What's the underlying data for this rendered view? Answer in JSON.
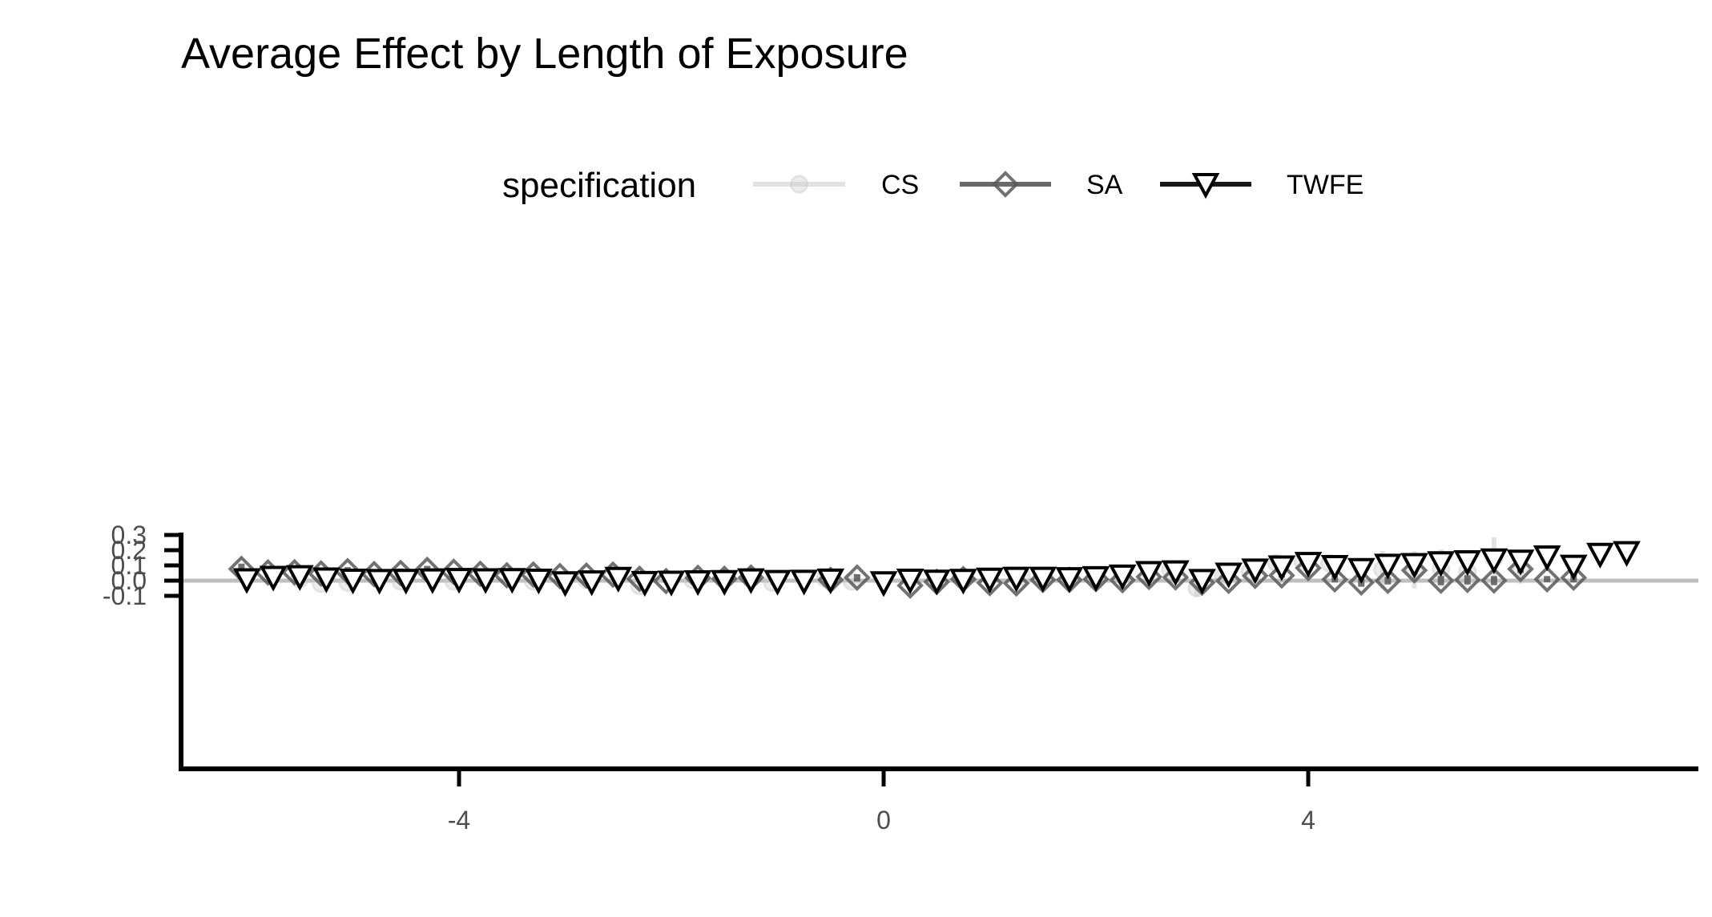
{
  "chart_data": {
    "type": "scatter",
    "title": "Average Effect by Length of Exposure",
    "xlabel": "",
    "ylabel": "",
    "xlim": [
      -6.6,
      7.7
    ],
    "ylim": [
      -0.125,
      0.305
    ],
    "x_ticks": [
      -4,
      0,
      4
    ],
    "x_tick_labels": [
      "-4",
      "0",
      "4"
    ],
    "y_ticks": [
      -0.1,
      0.0,
      0.1,
      0.2,
      0.3
    ],
    "y_tick_labels": [
      "-0.1",
      "0.0",
      "0.1",
      "0.2",
      "0.3"
    ],
    "reference_line_y": 0,
    "grid": false,
    "legend": {
      "title": "specification",
      "position": "top-center"
    },
    "colors": {
      "CS": "#cccccc",
      "SA": "#595959",
      "TWFE": "#000000",
      "reference": "#bfbfbf"
    },
    "series": [
      {
        "name": "CS",
        "marker": "circle",
        "points": [
          {
            "x": -5.5,
            "y": 0.01,
            "lo": -0.015,
            "hi": 0.035
          },
          {
            "x": -5.3,
            "y": -0.02,
            "lo": -0.035,
            "hi": -0.005
          },
          {
            "x": -5.05,
            "y": -0.012,
            "lo": -0.03,
            "hi": 0.005
          },
          {
            "x": -4.55,
            "y": -0.005,
            "lo": -0.02,
            "hi": 0.01
          },
          {
            "x": -4.05,
            "y": -0.005,
            "lo": -0.02,
            "hi": 0.01
          },
          {
            "x": -3.3,
            "y": -0.005,
            "lo": -0.02,
            "hi": 0.01
          },
          {
            "x": -2.8,
            "y": 0.007,
            "lo": -0.005,
            "hi": 0.02
          },
          {
            "x": -2.3,
            "y": -0.035,
            "lo": -0.045,
            "hi": -0.025
          },
          {
            "x": -1.8,
            "y": 0.005,
            "lo": -0.005,
            "hi": 0.015
          },
          {
            "x": -1.05,
            "y": -0.012,
            "lo": -0.03,
            "hi": 0.005
          },
          {
            "x": -0.55,
            "y": 0.015,
            "lo": 0.005,
            "hi": 0.025
          },
          {
            "x": -0.3,
            "y": -0.005,
            "lo": -0.02,
            "hi": 0.01
          },
          {
            "x": 0.25,
            "y": 0.01,
            "lo": -0.005,
            "hi": 0.025
          },
          {
            "x": 1.3,
            "y": 0.025,
            "lo": 0.005,
            "hi": 0.045
          },
          {
            "x": 2.5,
            "y": 0.065,
            "lo": 0.045,
            "hi": 0.085
          },
          {
            "x": 2.7,
            "y": 0.07,
            "lo": 0.05,
            "hi": 0.09
          },
          {
            "x": 2.95,
            "y": -0.048,
            "lo": -0.105,
            "hi": 0.01
          },
          {
            "x": 3.2,
            "y": 0.03,
            "lo": 0.01,
            "hi": 0.05
          },
          {
            "x": 3.45,
            "y": 0.06,
            "lo": 0.04,
            "hi": 0.08
          },
          {
            "x": 3.7,
            "y": 0.115,
            "lo": 0.09,
            "hi": 0.14
          },
          {
            "x": 3.95,
            "y": 0.123,
            "lo": 0.09,
            "hi": 0.155
          },
          {
            "x": 4.2,
            "y": 0.115,
            "lo": 0.09,
            "hi": 0.14
          },
          {
            "x": 4.7,
            "y": 0.073,
            "lo": -0.055,
            "hi": 0.195
          },
          {
            "x": 5.0,
            "y": 0.075,
            "lo": -0.05,
            "hi": 0.195
          },
          {
            "x": 5.25,
            "y": 0.075,
            "lo": -0.04,
            "hi": 0.205
          },
          {
            "x": 5.5,
            "y": 0.06,
            "lo": -0.035,
            "hi": 0.155
          },
          {
            "x": 5.75,
            "y": 0.148,
            "lo": 0.0,
            "hi": 0.285
          },
          {
            "x": 6.0,
            "y": 0.07,
            "lo": -0.02,
            "hi": 0.16
          }
        ]
      },
      {
        "name": "SA",
        "marker": "diamond",
        "points": [
          {
            "x": -6.05,
            "y": 0.077,
            "lo": 0.043,
            "hi": 0.112
          },
          {
            "x": -5.8,
            "y": 0.054,
            "lo": 0.02,
            "hi": 0.088
          },
          {
            "x": -5.55,
            "y": 0.055,
            "lo": 0.025,
            "hi": 0.087
          },
          {
            "x": -5.3,
            "y": 0.047,
            "lo": 0.015,
            "hi": 0.08
          },
          {
            "x": -5.05,
            "y": 0.062,
            "lo": 0.035,
            "hi": 0.089
          },
          {
            "x": -4.8,
            "y": 0.043,
            "lo": 0.02,
            "hi": 0.065
          },
          {
            "x": -4.55,
            "y": 0.05,
            "lo": 0.02,
            "hi": 0.08
          },
          {
            "x": -4.3,
            "y": 0.07,
            "lo": 0.043,
            "hi": 0.097
          },
          {
            "x": -4.05,
            "y": 0.058,
            "lo": 0.033,
            "hi": 0.082
          },
          {
            "x": -3.8,
            "y": 0.045,
            "lo": 0.025,
            "hi": 0.065
          },
          {
            "x": -3.55,
            "y": 0.035,
            "lo": 0.015,
            "hi": 0.055
          },
          {
            "x": -3.3,
            "y": 0.04,
            "lo": 0.02,
            "hi": 0.06
          },
          {
            "x": -3.05,
            "y": 0.03,
            "lo": 0.005,
            "hi": 0.055
          },
          {
            "x": -2.8,
            "y": 0.033,
            "lo": 0.008,
            "hi": 0.058
          },
          {
            "x": -2.55,
            "y": 0.04,
            "lo": 0.02,
            "hi": 0.06
          },
          {
            "x": -2.3,
            "y": 0.012,
            "lo": 0.0,
            "hi": 0.025
          },
          {
            "x": -2.05,
            "y": -0.003,
            "lo": -0.012,
            "hi": 0.006
          },
          {
            "x": -1.75,
            "y": 0.018,
            "lo": 0.005,
            "hi": 0.032
          },
          {
            "x": -1.5,
            "y": 0.012,
            "lo": 0.0,
            "hi": 0.025
          },
          {
            "x": -1.25,
            "y": 0.02,
            "lo": 0.007,
            "hi": 0.035
          },
          {
            "x": -0.5,
            "y": 0.005,
            "lo": -0.005,
            "hi": 0.015
          },
          {
            "x": -0.25,
            "y": 0.02,
            "lo": -0.005,
            "hi": 0.042
          },
          {
            "x": 0.25,
            "y": -0.032,
            "lo": -0.038,
            "hi": -0.026
          },
          {
            "x": 0.5,
            "y": -0.008,
            "lo": -0.02,
            "hi": 0.005
          },
          {
            "x": 0.75,
            "y": 0.01,
            "lo": -0.005,
            "hi": 0.025
          },
          {
            "x": 1.0,
            "y": -0.016,
            "lo": -0.03,
            "hi": 0.0
          },
          {
            "x": 1.25,
            "y": -0.018,
            "lo": -0.033,
            "hi": -0.003
          },
          {
            "x": 1.5,
            "y": 0.005,
            "lo": -0.01,
            "hi": 0.02
          },
          {
            "x": 1.75,
            "y": 0.005,
            "lo": -0.015,
            "hi": 0.025
          },
          {
            "x": 2.0,
            "y": 0.01,
            "lo": -0.01,
            "hi": 0.03
          },
          {
            "x": 2.25,
            "y": 0.003,
            "lo": -0.015,
            "hi": 0.02
          },
          {
            "x": 2.5,
            "y": 0.025,
            "lo": 0.005,
            "hi": 0.045
          },
          {
            "x": 2.75,
            "y": 0.022,
            "lo": 0.002,
            "hi": 0.042
          },
          {
            "x": 3.0,
            "y": -0.013,
            "lo": -0.03,
            "hi": 0.005
          },
          {
            "x": 3.25,
            "y": -0.001,
            "lo": -0.015,
            "hi": 0.012
          },
          {
            "x": 3.5,
            "y": 0.032,
            "lo": 0.017,
            "hi": 0.047
          },
          {
            "x": 3.75,
            "y": 0.034,
            "lo": 0.019,
            "hi": 0.049
          },
          {
            "x": 4.0,
            "y": 0.083,
            "lo": 0.065,
            "hi": 0.1
          },
          {
            "x": 4.25,
            "y": 0.008,
            "lo": -0.012,
            "hi": 0.032
          },
          {
            "x": 4.5,
            "y": -0.012,
            "lo": -0.04,
            "hi": 0.015
          },
          {
            "x": 4.75,
            "y": -0.001,
            "lo": -0.025,
            "hi": 0.025
          },
          {
            "x": 5.0,
            "y": 0.068,
            "lo": 0.04,
            "hi": 0.095
          },
          {
            "x": 5.25,
            "y": 0.0,
            "lo": -0.03,
            "hi": 0.03
          },
          {
            "x": 5.5,
            "y": 0.005,
            "lo": -0.025,
            "hi": 0.035
          },
          {
            "x": 5.75,
            "y": 0.001,
            "lo": -0.03,
            "hi": 0.03
          },
          {
            "x": 6.0,
            "y": 0.076,
            "lo": 0.05,
            "hi": 0.1
          },
          {
            "x": 6.25,
            "y": 0.009,
            "lo": -0.01,
            "hi": 0.03
          },
          {
            "x": 6.5,
            "y": 0.02,
            "lo": -0.012,
            "hi": 0.052
          }
        ]
      },
      {
        "name": "TWFE",
        "marker": "triangle-down",
        "points": [
          {
            "x": -6.0,
            "y": 0.008,
            "lo": -0.02,
            "hi": 0.035
          },
          {
            "x": -5.75,
            "y": 0.024,
            "lo": -0.002,
            "hi": 0.05
          },
          {
            "x": -5.5,
            "y": 0.028,
            "lo": 0.003,
            "hi": 0.052
          },
          {
            "x": -5.25,
            "y": 0.013,
            "lo": -0.015,
            "hi": 0.04
          },
          {
            "x": -5.0,
            "y": 0.005,
            "lo": -0.018,
            "hi": 0.028
          },
          {
            "x": -4.75,
            "y": 0.003,
            "lo": -0.02,
            "hi": 0.027
          },
          {
            "x": -4.5,
            "y": 0.004,
            "lo": -0.02,
            "hi": 0.028
          },
          {
            "x": -4.25,
            "y": 0.007,
            "lo": -0.015,
            "hi": 0.03
          },
          {
            "x": -4.0,
            "y": 0.01,
            "lo": -0.01,
            "hi": 0.03
          },
          {
            "x": -3.75,
            "y": 0.008,
            "lo": -0.012,
            "hi": 0.028
          },
          {
            "x": -3.5,
            "y": 0.009,
            "lo": -0.01,
            "hi": 0.028
          },
          {
            "x": -3.25,
            "y": 0.005,
            "lo": -0.012,
            "hi": 0.022
          },
          {
            "x": -3.0,
            "y": -0.012,
            "lo": -0.025,
            "hi": 0.002
          },
          {
            "x": -2.75,
            "y": -0.006,
            "lo": -0.02,
            "hi": 0.008
          },
          {
            "x": -2.5,
            "y": 0.017,
            "lo": 0.005,
            "hi": 0.03
          },
          {
            "x": -2.25,
            "y": -0.01,
            "lo": -0.02,
            "hi": 0.0
          },
          {
            "x": -2.0,
            "y": -0.008,
            "lo": -0.018,
            "hi": 0.002
          },
          {
            "x": -1.75,
            "y": -0.005,
            "lo": -0.015,
            "hi": 0.005
          },
          {
            "x": -1.5,
            "y": -0.004,
            "lo": -0.014,
            "hi": 0.006
          },
          {
            "x": -1.25,
            "y": 0.007,
            "lo": -0.007,
            "hi": 0.02
          },
          {
            "x": -1.0,
            "y": -0.003,
            "lo": -0.012,
            "hi": 0.006
          },
          {
            "x": -0.75,
            "y": -0.002,
            "lo": -0.01,
            "hi": 0.006
          },
          {
            "x": -0.5,
            "y": 0.006,
            "lo": -0.002,
            "hi": 0.014
          },
          {
            "x": 0.0,
            "y": -0.012,
            "lo": -0.02,
            "hi": -0.004
          },
          {
            "x": 0.25,
            "y": 0.005,
            "lo": -0.005,
            "hi": 0.015
          },
          {
            "x": 0.5,
            "y": -0.001,
            "lo": -0.01,
            "hi": 0.008
          },
          {
            "x": 0.75,
            "y": 0.004,
            "lo": -0.006,
            "hi": 0.014
          },
          {
            "x": 1.0,
            "y": 0.012,
            "lo": 0.0,
            "hi": 0.024
          },
          {
            "x": 1.25,
            "y": 0.018,
            "lo": 0.005,
            "hi": 0.032
          },
          {
            "x": 1.5,
            "y": 0.018,
            "lo": 0.004,
            "hi": 0.033
          },
          {
            "x": 1.75,
            "y": 0.015,
            "lo": 0.0,
            "hi": 0.03
          },
          {
            "x": 2.0,
            "y": 0.022,
            "lo": 0.006,
            "hi": 0.038
          },
          {
            "x": 2.25,
            "y": 0.032,
            "lo": 0.018,
            "hi": 0.047
          },
          {
            "x": 2.5,
            "y": 0.055,
            "lo": 0.04,
            "hi": 0.07
          },
          {
            "x": 2.75,
            "y": 0.06,
            "lo": 0.044,
            "hi": 0.076
          },
          {
            "x": 3.0,
            "y": 0.003,
            "lo": -0.012,
            "hi": 0.018
          },
          {
            "x": 3.25,
            "y": 0.045,
            "lo": 0.03,
            "hi": 0.062
          },
          {
            "x": 3.5,
            "y": 0.072,
            "lo": 0.055,
            "hi": 0.09
          },
          {
            "x": 3.75,
            "y": 0.092,
            "lo": 0.073,
            "hi": 0.112
          },
          {
            "x": 4.0,
            "y": 0.115,
            "lo": 0.092,
            "hi": 0.14
          },
          {
            "x": 4.25,
            "y": 0.095,
            "lo": 0.072,
            "hi": 0.118
          },
          {
            "x": 4.5,
            "y": 0.075,
            "lo": 0.053,
            "hi": 0.098
          },
          {
            "x": 4.75,
            "y": 0.103,
            "lo": 0.078,
            "hi": 0.128
          },
          {
            "x": 5.0,
            "y": 0.108,
            "lo": 0.08,
            "hi": 0.135
          },
          {
            "x": 5.25,
            "y": 0.12,
            "lo": 0.09,
            "hi": 0.15
          },
          {
            "x": 5.5,
            "y": 0.126,
            "lo": 0.095,
            "hi": 0.158
          },
          {
            "x": 5.75,
            "y": 0.138,
            "lo": 0.095,
            "hi": 0.182
          },
          {
            "x": 6.0,
            "y": 0.13,
            "lo": 0.09,
            "hi": 0.172
          },
          {
            "x": 6.25,
            "y": 0.158,
            "lo": 0.11,
            "hi": 0.205
          },
          {
            "x": 6.5,
            "y": 0.097,
            "lo": 0.045,
            "hi": 0.15
          },
          {
            "x": 6.75,
            "y": 0.175,
            "lo": 0.108,
            "hi": 0.242
          },
          {
            "x": 7.0,
            "y": 0.186,
            "lo": 0.12,
            "hi": 0.25
          }
        ]
      }
    ]
  }
}
